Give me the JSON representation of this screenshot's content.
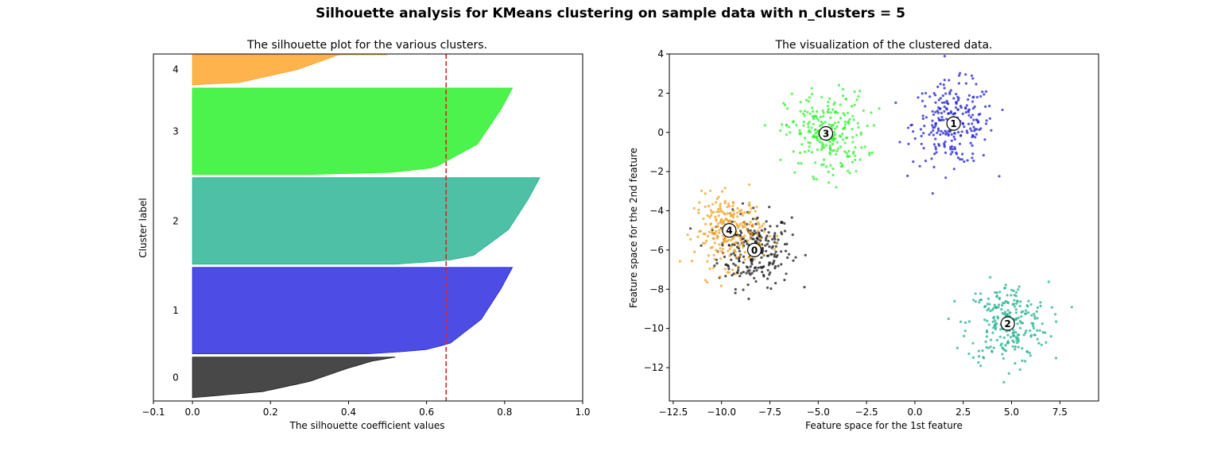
{
  "figure": {
    "suptitle": "Silhouette analysis for KMeans clustering on sample data with n_clusters = 5"
  },
  "chart_data": [
    {
      "type": "area",
      "title": "The silhouette plot for the various clusters.",
      "xlabel": "The silhouette coefficient values",
      "ylabel": "Cluster label",
      "xlim": [
        -0.1,
        1.0
      ],
      "xticks": [
        -0.1,
        0.0,
        0.2,
        0.4,
        0.6,
        0.8,
        1.0
      ],
      "xtick_labels": [
        "−0.1",
        "0.0",
        "0.2",
        "0.4",
        "0.6",
        "0.8",
        "1.0"
      ],
      "ylim": [
        0,
        1060
      ],
      "average_silhouette_score": 0.65,
      "average_line_color": "#d62728",
      "series": [
        {
          "label": "0",
          "color": "#1a1a1a",
          "y_lower": 10,
          "y_upper": 134,
          "profile": [
            [
              0,
              0.0
            ],
            [
              0.15,
              0.18
            ],
            [
              0.4,
              0.3
            ],
            [
              0.7,
              0.39
            ],
            [
              0.9,
              0.46
            ],
            [
              1,
              0.52
            ]
          ]
        },
        {
          "label": "1",
          "color": "#2020e0",
          "y_lower": 144,
          "y_upper": 408,
          "profile": [
            [
              0,
              0.45
            ],
            [
              0.04,
              0.59
            ],
            [
              0.12,
              0.66
            ],
            [
              0.4,
              0.74
            ],
            [
              0.75,
              0.79
            ],
            [
              1,
              0.82
            ]
          ]
        },
        {
          "label": "2",
          "color": "#20b090",
          "y_lower": 418,
          "y_upper": 682,
          "profile": [
            [
              0,
              0.52
            ],
            [
              0.04,
              0.65
            ],
            [
              0.1,
              0.72
            ],
            [
              0.4,
              0.81
            ],
            [
              0.75,
              0.86
            ],
            [
              1,
              0.89
            ]
          ]
        },
        {
          "label": "3",
          "color": "#20f020",
          "y_lower": 692,
          "y_upper": 956,
          "profile": [
            [
              0,
              0.3
            ],
            [
              0.02,
              0.5
            ],
            [
              0.08,
              0.62
            ],
            [
              0.35,
              0.73
            ],
            [
              0.75,
              0.79
            ],
            [
              1,
              0.82
            ]
          ]
        },
        {
          "label": "4",
          "color": "#ffa020",
          "y_lower": 966,
          "y_upper": 1100,
          "profile": [
            [
              0,
              0.0
            ],
            [
              0.05,
              0.12
            ],
            [
              0.35,
              0.27
            ],
            [
              0.7,
              0.38
            ],
            [
              0.9,
              0.45
            ],
            [
              1,
              0.5
            ]
          ]
        }
      ]
    },
    {
      "type": "scatter",
      "title": "The visualization of the clustered data.",
      "xlabel": "Feature space for the 1st feature",
      "ylabel": "Feature space for the 2nd feature",
      "xlim": [
        -12.7,
        9.5
      ],
      "ylim": [
        -13.7,
        4.0
      ],
      "xticks": [
        -12.5,
        -10.0,
        -7.5,
        -5.0,
        -2.5,
        0.0,
        2.5,
        5.0,
        7.5
      ],
      "xtick_labels": [
        "−12.5",
        "−10.0",
        "−7.5",
        "−5.0",
        "−2.5",
        "0.0",
        "2.5",
        "5.0",
        "7.5"
      ],
      "yticks": [
        4,
        2,
        0,
        -2,
        -4,
        -6,
        -8,
        -10,
        -12
      ],
      "ytick_labels": [
        "4",
        "2",
        "0",
        "−2",
        "−4",
        "−6",
        "−8",
        "−10",
        "−12"
      ],
      "points_per_cluster": 250,
      "clusters": [
        {
          "label": "0",
          "color": "#1a1a1a",
          "center": [
            -8.3,
            -6.0
          ],
          "spread": 0.95
        },
        {
          "label": "1",
          "color": "#2020d0",
          "center": [
            2.0,
            0.45
          ],
          "spread": 1.05
        },
        {
          "label": "2",
          "color": "#20b090",
          "center": [
            4.8,
            -9.75
          ],
          "spread": 1.05
        },
        {
          "label": "3",
          "color": "#30f030",
          "center": [
            -4.6,
            -0.05
          ],
          "spread": 1.05
        },
        {
          "label": "4",
          "color": "#f0a020",
          "center": [
            -9.6,
            -5.0
          ],
          "spread": 0.9
        }
      ]
    }
  ]
}
